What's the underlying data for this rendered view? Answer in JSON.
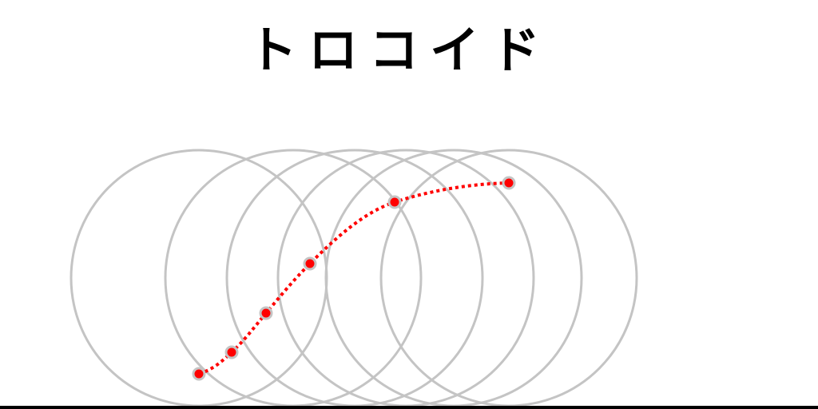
{
  "header": {
    "title": "トロコイド"
  }
}
